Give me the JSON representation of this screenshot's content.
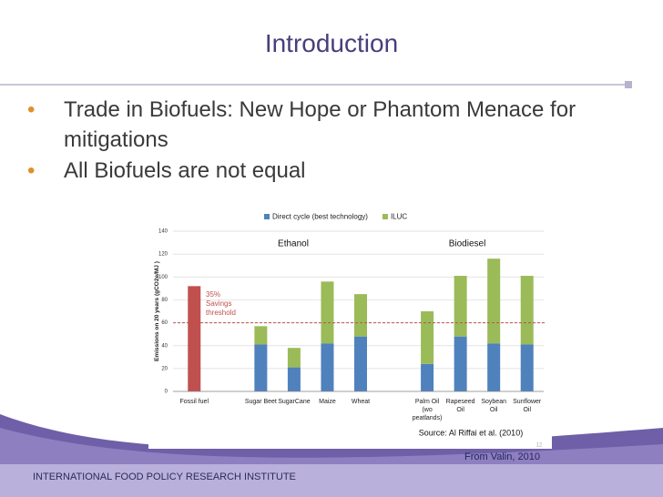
{
  "slide": {
    "title": "Introduction",
    "bullets": [
      "Trade in Biofuels: New Hope or Phantom Menace for mitigations",
      "All Biofuels are not equal"
    ],
    "credit": "From Valin, 2010",
    "footer": "INTERNATIONAL FOOD POLICY RESEARCH INSTITUTE",
    "page_number": "12"
  },
  "chart_data": {
    "type": "bar",
    "stacked": true,
    "categories": [
      "Fossil fuel",
      null,
      "Sugar Beet",
      "SugarCane",
      "Maize",
      "Wheat",
      null,
      "Palm Oil (wo peatlands)",
      "Rapeseed Oil",
      "Soybean Oil",
      "Sunflower Oil"
    ],
    "series": [
      {
        "name": "Direct cycle (best technology)",
        "color": "#4f81bd",
        "values": [
          null,
          null,
          41,
          21,
          42,
          48,
          null,
          24,
          48,
          42,
          41
        ]
      },
      {
        "name": "ILUC",
        "color": "#9bbb59",
        "values": [
          null,
          null,
          16,
          17,
          54,
          37,
          null,
          46,
          53,
          74,
          60
        ]
      },
      {
        "color": "#c0504d",
        "values": [
          92,
          null,
          null,
          null,
          null,
          null,
          null,
          null,
          null,
          null,
          null
        ]
      }
    ],
    "ylabel": "Emissions on 20 years (gCO2e/MJ )",
    "ylim": [
      0,
      140
    ],
    "yticks": [
      0,
      20,
      40,
      60,
      80,
      100,
      120,
      140
    ],
    "grid": true,
    "group_labels": [
      "Ethanol",
      "Biodiesel"
    ],
    "threshold": 60,
    "threshold_color": "#c0504d",
    "annotation": "35% Savings threshold",
    "source": "Source: Al Riffai et al. (2010)"
  }
}
